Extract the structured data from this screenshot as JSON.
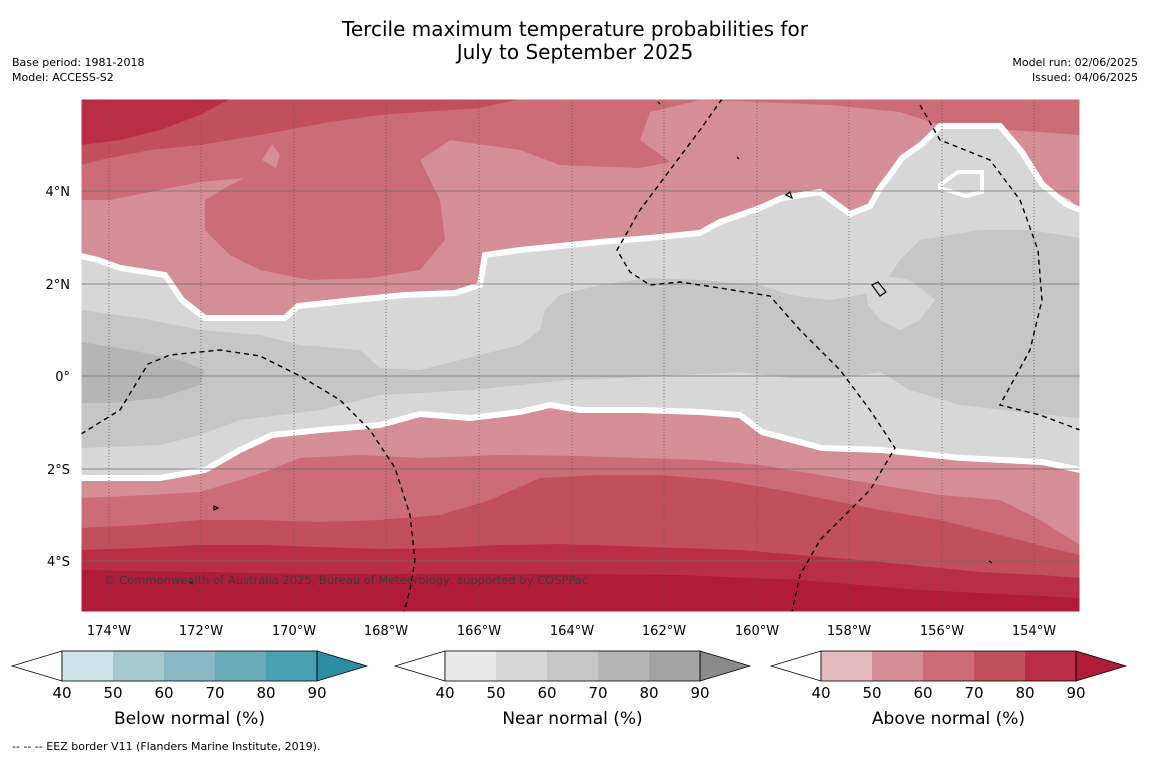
{
  "title": {
    "line1": "Tercile maximum temperature probabilities for",
    "line2": "July to September 2025"
  },
  "meta_left": {
    "base_period": "Base period: 1981-2018",
    "model": "Model: ACCESS-S2"
  },
  "meta_right": {
    "model_run": "Model run: 02/06/2025",
    "issued": "Issued: 04/06/2025"
  },
  "copyright": "© Commonwealth of Australia 2025, Bureau of Meteorology, supported by COSPPac",
  "map": {
    "longitude_labels": [
      "174°W",
      "172°W",
      "170°W",
      "168°W",
      "166°W",
      "164°W",
      "162°W",
      "160°W",
      "158°W",
      "156°W",
      "154°W"
    ],
    "latitude_labels": [
      "4°N",
      "2°N",
      "0°",
      "2°S",
      "4°S"
    ],
    "colors": {
      "above": [
        "#e3b8be",
        "#d58d96",
        "#cb6c77",
        "#c2505c",
        "#b92e44",
        "#b01c38"
      ],
      "near": [
        "#e9e9e9",
        "#d7d7d7",
        "#c6c6c6",
        "#b5b5b5",
        "#a4a4a4",
        "#8a8a8a"
      ],
      "below": [
        "#cce3ea",
        "#a8c8cf",
        "#8ab7c4",
        "#6aabb9",
        "#4a9fb0",
        "#2b8da3"
      ]
    }
  },
  "colorbars": [
    {
      "id": "below",
      "label": "Below normal (%)",
      "ticks": [
        "40",
        "50",
        "60",
        "70",
        "80",
        "90"
      ]
    },
    {
      "id": "near",
      "label": "Near normal (%)",
      "ticks": [
        "40",
        "50",
        "60",
        "70",
        "80",
        "90"
      ]
    },
    {
      "id": "above",
      "label": "Above normal (%)",
      "ticks": [
        "40",
        "50",
        "60",
        "70",
        "80",
        "90"
      ]
    }
  ],
  "footnote": "--  --  -- EEZ border V11 (Flanders Marine Institute, 2019)."
}
